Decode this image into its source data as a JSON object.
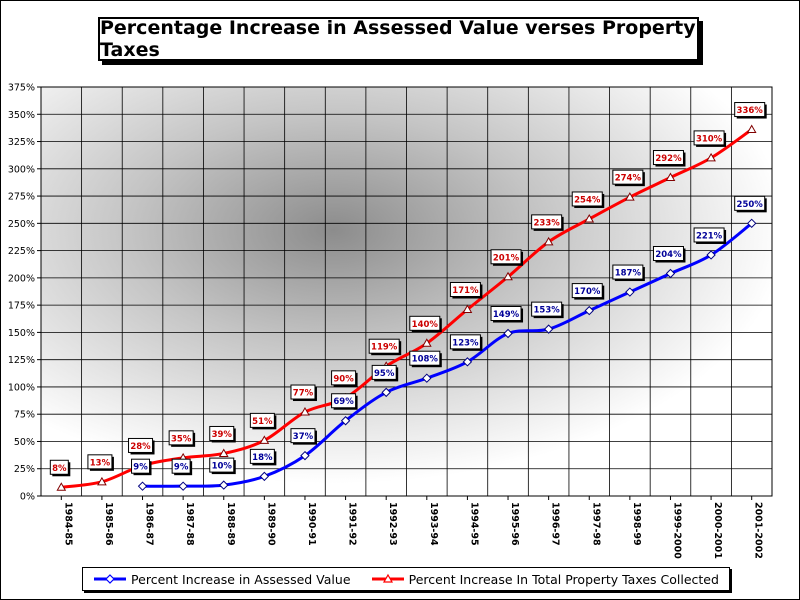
{
  "title": "Percentage Increase in Assessed Value verses Property Taxes",
  "colors": {
    "assessed": "#0000ff",
    "taxes": "#ff0000",
    "label_assessed": "#000099",
    "label_taxes": "#cc0000"
  },
  "chart_data": {
    "type": "line",
    "title": "Percentage Increase in Assessed Value verses Property Taxes",
    "categories": [
      "1984-85",
      "1985-86",
      "1986-87",
      "1987-88",
      "1988-89",
      "1989-90",
      "1990-91",
      "1991-92",
      "1992-93",
      "1993-94",
      "1994-95",
      "1995-96",
      "1996-97",
      "1997-98",
      "1998-99",
      "1999-2000",
      "2000-2001",
      "2001-2002"
    ],
    "ylim": [
      0,
      375
    ],
    "yticks": [
      "0%",
      "25%",
      "50%",
      "75%",
      "100%",
      "125%",
      "150%",
      "175%",
      "200%",
      "225%",
      "250%",
      "275%",
      "300%",
      "325%",
      "350%",
      "375%"
    ],
    "grid": true,
    "legend_position": "bottom",
    "series": [
      {
        "name": "Percent Increase in Assessed Value",
        "marker": "diamond",
        "values": [
          null,
          null,
          9,
          9,
          10,
          18,
          37,
          69,
          95,
          108,
          123,
          149,
          153,
          170,
          187,
          204,
          221,
          250
        ],
        "labels": [
          "",
          "",
          "9%",
          "9%",
          "10%",
          "18%",
          "37%",
          "69%",
          "95%",
          "108%",
          "123%",
          "149%",
          "153%",
          "170%",
          "187%",
          "204%",
          "221%",
          "250%"
        ]
      },
      {
        "name": "Percent Increase In Total Property Taxes Collected",
        "marker": "triangle",
        "values": [
          8,
          13,
          28,
          35,
          39,
          51,
          77,
          90,
          119,
          140,
          171,
          201,
          233,
          254,
          274,
          292,
          310,
          336
        ],
        "labels": [
          "8%",
          "13%",
          "28%",
          "35%",
          "39%",
          "51%",
          "77%",
          "90%",
          "119%",
          "140%",
          "171%",
          "201%",
          "233%",
          "254%",
          "274%",
          "292%",
          "310%",
          "336%"
        ]
      }
    ]
  },
  "legend": {
    "assessed": "Percent Increase in Assessed Value",
    "taxes": "Percent Increase In Total Property Taxes Collected"
  }
}
